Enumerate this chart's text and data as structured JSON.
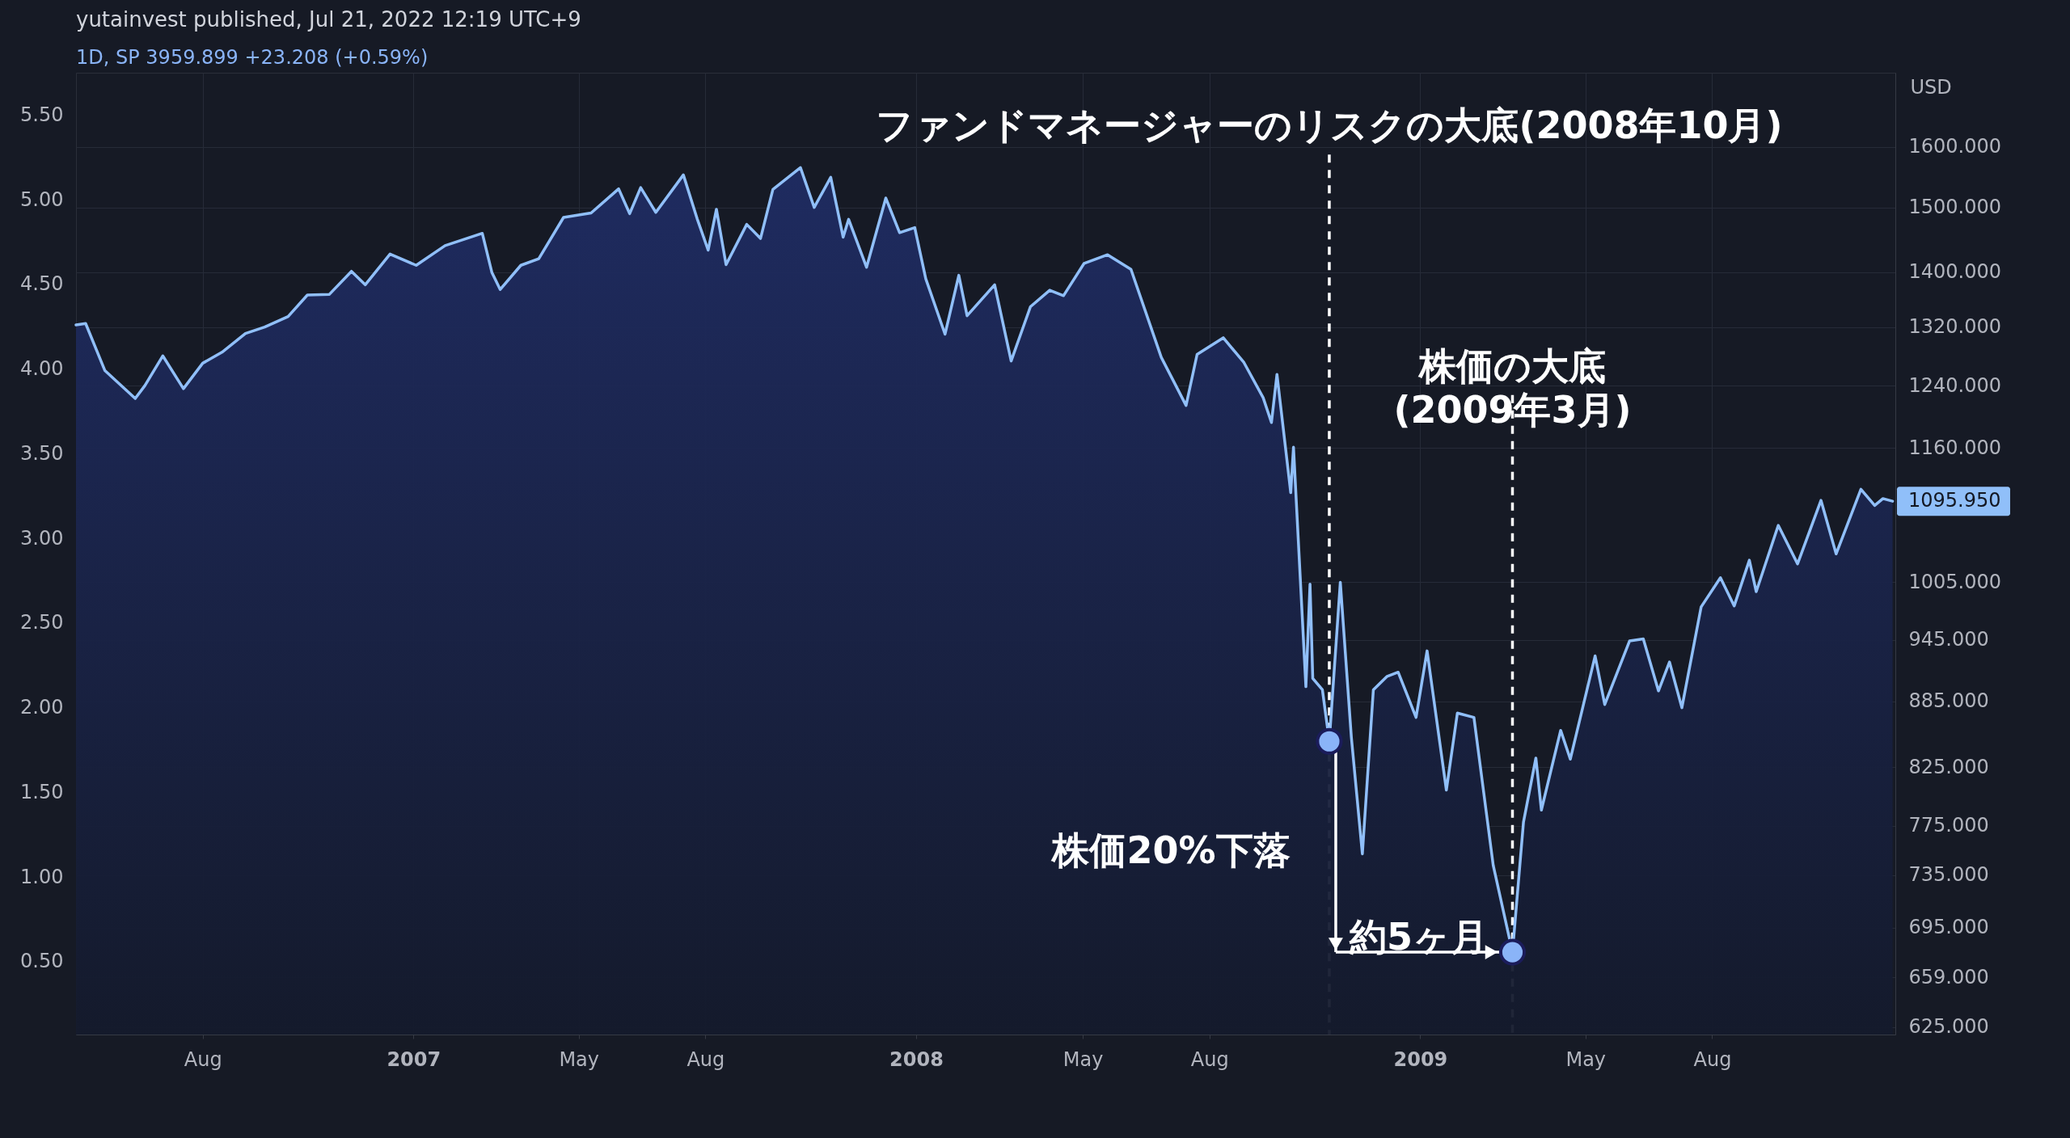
{
  "chart_data": {
    "type": "area",
    "title": "yutainvest published, Jul 21, 2022 12:19 UTC+9",
    "subtitle": "1D, SP  3959.899  +23.208 (+0.59%)",
    "y2label": "USD",
    "xlim": [
      "2006-05-01",
      "2009-12-12"
    ],
    "xticks": [
      {
        "value": "2006-08-01",
        "label": "Aug"
      },
      {
        "value": "2007-01-01",
        "label": "2007"
      },
      {
        "value": "2007-05-01",
        "label": "May"
      },
      {
        "value": "2007-08-01",
        "label": "Aug"
      },
      {
        "value": "2008-01-01",
        "label": "2008"
      },
      {
        "value": "2008-05-01",
        "label": "May"
      },
      {
        "value": "2008-08-01",
        "label": "Aug"
      },
      {
        "value": "2009-01-01",
        "label": "2009"
      },
      {
        "value": "2009-05-01",
        "label": "May"
      },
      {
        "value": "2009-08-01",
        "label": "Aug"
      }
    ],
    "ylim": [
      0.07,
      5.75
    ],
    "yticks": [
      {
        "value": 0.5,
        "label": "0.50"
      },
      {
        "value": 1,
        "label": "1.00"
      },
      {
        "value": 1.5,
        "label": "1.50"
      },
      {
        "value": 2,
        "label": "2.00"
      },
      {
        "value": 2.5,
        "label": "2.50"
      },
      {
        "value": 3,
        "label": "3.00"
      },
      {
        "value": 3.5,
        "label": "3.50"
      },
      {
        "value": 4,
        "label": "4.00"
      },
      {
        "value": 4.5,
        "label": "4.50"
      },
      {
        "value": 5,
        "label": "5.00"
      },
      {
        "value": 5.5,
        "label": "5.50"
      }
    ],
    "y2lim": [
      620,
      1732
    ],
    "log": "y2",
    "y2ticks": [
      {
        "value": 625,
        "label": "625.000"
      },
      {
        "value": 659,
        "label": "659.000"
      },
      {
        "value": 695,
        "label": "695.000"
      },
      {
        "value": 735,
        "label": "735.000"
      },
      {
        "value": 775,
        "label": "775.000"
      },
      {
        "value": 825,
        "label": "825.000"
      },
      {
        "value": 885,
        "label": "885.000"
      },
      {
        "value": 945,
        "label": "945.000"
      },
      {
        "value": 1005,
        "label": "1005.000"
      },
      {
        "value": 1160,
        "label": "1160.000"
      },
      {
        "value": 1240,
        "label": "1240.000"
      },
      {
        "value": 1320,
        "label": "1320.000"
      },
      {
        "value": 1400,
        "label": "1400.000"
      },
      {
        "value": 1500,
        "label": "1500.000"
      },
      {
        "value": 1600,
        "label": "1600.000"
      }
    ],
    "grid": true,
    "series": [
      {
        "axis": "y2",
        "color": "#90bff9",
        "marker": "none",
        "line_style": "solid",
        "x": [
          "2006-05-01",
          "2006-05-08",
          "2006-05-22",
          "2006-06-13",
          "2006-06-20",
          "2006-07-03",
          "2006-07-18",
          "2006-08-01",
          "2006-08-15",
          "2006-09-01",
          "2006-09-15",
          "2006-10-02",
          "2006-10-16",
          "2006-11-01",
          "2006-11-17",
          "2006-11-27",
          "2006-12-15",
          "2007-01-03",
          "2007-01-24",
          "2007-02-20",
          "2007-02-27",
          "2007-03-05",
          "2007-03-20",
          "2007-04-02",
          "2007-04-20",
          "2007-05-10",
          "2007-05-30",
          "2007-06-07",
          "2007-06-15",
          "2007-06-26",
          "2007-07-16",
          "2007-07-26",
          "2007-08-03",
          "2007-08-09",
          "2007-08-16",
          "2007-08-31",
          "2007-09-10",
          "2007-09-19",
          "2007-10-09",
          "2007-10-19",
          "2007-10-31",
          "2007-11-09",
          "2007-11-13",
          "2007-11-26",
          "2007-12-10",
          "2007-12-20",
          "2007-12-31",
          "2008-01-08",
          "2008-01-22",
          "2008-02-01",
          "2008-02-07",
          "2008-02-27",
          "2008-03-10",
          "2008-03-24",
          "2008-04-07",
          "2008-04-17",
          "2008-05-02",
          "2008-05-19",
          "2008-06-05",
          "2008-06-27",
          "2008-07-15",
          "2008-07-23",
          "2008-08-11",
          "2008-08-26",
          "2008-09-09",
          "2008-09-15",
          "2008-09-19",
          "2008-09-29",
          "2008-10-01",
          "2008-10-10",
          "2008-10-13",
          "2008-10-15",
          "2008-10-22",
          "2008-10-27",
          "2008-11-04",
          "2008-11-12",
          "2008-11-20",
          "2008-11-28",
          "2008-12-08",
          "2008-12-16",
          "2008-12-29",
          "2009-01-06",
          "2009-01-20",
          "2009-01-28",
          "2009-02-09",
          "2009-02-23",
          "2009-03-09",
          "2009-03-17",
          "2009-03-26",
          "2009-03-30",
          "2009-04-13",
          "2009-04-20",
          "2009-05-08",
          "2009-05-15",
          "2009-06-02",
          "2009-06-12",
          "2009-06-23",
          "2009-07-01",
          "2009-07-10",
          "2009-07-24",
          "2009-08-07",
          "2009-08-17",
          "2009-08-28",
          "2009-09-02",
          "2009-09-18",
          "2009-10-02",
          "2009-10-19",
          "2009-10-30",
          "2009-11-17",
          "2009-11-27",
          "2009-12-03",
          "2009-12-10"
        ],
        "values": [
          1323,
          1325,
          1260,
          1223,
          1240,
          1280,
          1236,
          1270,
          1285,
          1311,
          1320,
          1335,
          1366,
          1367,
          1401,
          1381,
          1427,
          1410,
          1440,
          1459,
          1399,
          1374,
          1410,
          1420,
          1484,
          1491,
          1530,
          1490,
          1532,
          1492,
          1553,
          1482,
          1433,
          1497,
          1411,
          1473,
          1451,
          1529,
          1565,
          1500,
          1549,
          1453,
          1481,
          1407,
          1515,
          1460,
          1468,
          1390,
          1310,
          1395,
          1336,
          1381,
          1273,
          1349,
          1373,
          1365,
          1413,
          1426,
          1404,
          1278,
          1214,
          1282,
          1305,
          1271,
          1224,
          1192,
          1255,
          1106,
          1161,
          899,
          1003,
          907,
          896,
          848,
          1005,
          852,
          752,
          896,
          909,
          913,
          870,
          934,
          805,
          874,
          870,
          743,
          677,
          778,
          833,
          788,
          858,
          832,
          929,
          882,
          944,
          946,
          895,
          923,
          879,
          979,
          1010,
          980,
          1029,
          995,
          1068,
          1025,
          1097,
          1036,
          1110,
          1091,
          1099,
          1095.95
        ],
        "value_labels": [
          null,
          null,
          null,
          null,
          null,
          null,
          null,
          null,
          null,
          null,
          null,
          null,
          null,
          null,
          null,
          null,
          null,
          null,
          null,
          null,
          null,
          null,
          null,
          null,
          null,
          null,
          null,
          null,
          null,
          null,
          null,
          null,
          null,
          null,
          null,
          null,
          null,
          null,
          null,
          null,
          null,
          null,
          null,
          null,
          null,
          null,
          null,
          null,
          null,
          null,
          null,
          null,
          null,
          null,
          null,
          null,
          null,
          null,
          null,
          null,
          null,
          null,
          null,
          null,
          null,
          null,
          null,
          null,
          null,
          null,
          null,
          null,
          null,
          null,
          null,
          null,
          null,
          null,
          null,
          null,
          null,
          null,
          null,
          null,
          null,
          null,
          null,
          null,
          null,
          null,
          null,
          null,
          null,
          null,
          null,
          null,
          null,
          null,
          null,
          null,
          null,
          null,
          null,
          null,
          null,
          null,
          null,
          null,
          null,
          null,
          null,
          "1095.950"
        ]
      },
      {
        "type": "scatter",
        "axis": "y2",
        "color": "#8ab4f8",
        "marker": "circle",
        "x": [
          "2008-10-27",
          "2009-03-09"
        ],
        "values": [
          848,
          677
        ]
      }
    ],
    "ref_lines": [
      {
        "axis": "x",
        "value": "2008-10-27",
        "label": "ファンドマネージャーのリスクの大底(2008年10月)",
        "color": "#ffffff",
        "line_style": "dashed"
      },
      {
        "axis": "x",
        "value": "2009-03-09",
        "label": "株価の大底\n(2009年3月)",
        "color": "#ffffff",
        "line_style": "dashed"
      }
    ],
    "annotations": [
      "株価20%下落",
      "約5ヶ月"
    ]
  }
}
